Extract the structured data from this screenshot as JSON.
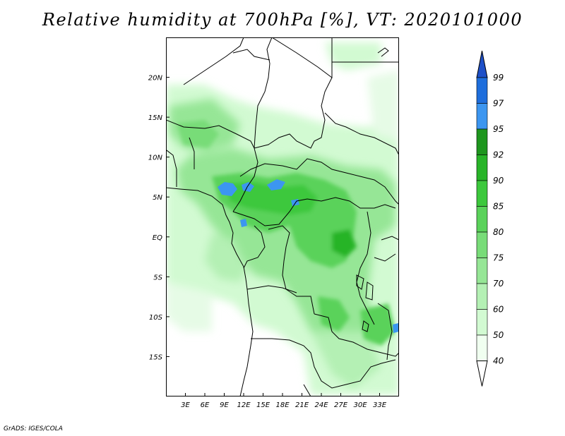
{
  "title": "Relative humidity at 700hPa [%], VT: 2020101000",
  "footer": "GrADS: IGES/COLA",
  "map": {
    "lon_range": [
      0,
      36
    ],
    "lat_range": [
      -20,
      25
    ],
    "lon_ticks": [
      "3E",
      "6E",
      "9E",
      "12E",
      "15E",
      "18E",
      "21E",
      "24E",
      "27E",
      "30E",
      "33E"
    ],
    "lat_ticks": [
      "20N",
      "15N",
      "10N",
      "5N",
      "EQ",
      "5S",
      "10S",
      "15S"
    ],
    "field_colors": {
      "40-50": "#f0fff0",
      "50-60": "#d2fad2",
      "60-70": "#b4f0b4",
      "70-75": "#96e696",
      "75-80": "#78dc78",
      "80-85": "#5ad25a",
      "85-90": "#3cc83c",
      "90-92": "#28b428",
      "92-95": "#1e961e",
      "95-97": "#3c96f0",
      "97-99": "#1e6edc"
    }
  },
  "colorbar": {
    "labels": [
      "99",
      "97",
      "95",
      "92",
      "90",
      "85",
      "80",
      "75",
      "70",
      "60",
      "50",
      "40"
    ],
    "colors": [
      "#1e50c8",
      "#1e6edc",
      "#3c96f0",
      "#1e961e",
      "#28b428",
      "#3cc83c",
      "#5ad25a",
      "#78dc78",
      "#96e696",
      "#b4f0b4",
      "#d2fad2",
      "#f0fff0",
      "#ffffff"
    ]
  }
}
